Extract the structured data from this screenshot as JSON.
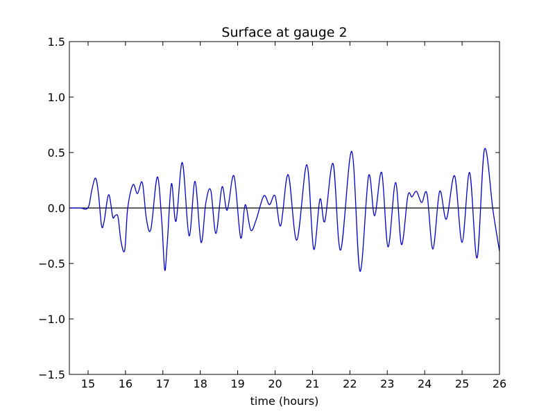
{
  "chart_data": {
    "type": "line",
    "title": "Surface at gauge 2",
    "xlabel": "time (hours)",
    "ylabel": "",
    "xlim": [
      14.5,
      26
    ],
    "ylim": [
      -1.5,
      1.5
    ],
    "grid": false,
    "x_ticks": [
      15,
      16,
      17,
      18,
      19,
      20,
      21,
      22,
      23,
      24,
      25,
      26
    ],
    "x_tick_labels": [
      "15",
      "16",
      "17",
      "18",
      "19",
      "20",
      "21",
      "22",
      "23",
      "24",
      "25",
      "26"
    ],
    "y_ticks": [
      -1.5,
      -1.0,
      -0.5,
      0.0,
      0.5,
      1.0,
      1.5
    ],
    "y_tick_labels": [
      "−1.5",
      "−1.0",
      "−0.5",
      "0.0",
      "0.5",
      "1.0",
      "1.5"
    ],
    "reference_line": {
      "y": 0.0,
      "color": "#000000"
    },
    "series": [
      {
        "color": "#0000cc",
        "x": [
          14.5,
          14.8,
          14.95,
          15.03,
          15.1,
          15.2,
          15.28,
          15.36,
          15.43,
          15.55,
          15.66,
          15.72,
          15.8,
          15.88,
          15.98,
          16.06,
          16.2,
          16.32,
          16.45,
          16.56,
          16.68,
          16.85,
          16.97,
          17.05,
          17.12,
          17.23,
          17.35,
          17.52,
          17.7,
          17.86,
          18.02,
          18.15,
          18.28,
          18.42,
          18.58,
          18.72,
          18.9,
          19.08,
          19.2,
          19.35,
          19.5,
          19.7,
          19.85,
          20.0,
          20.15,
          20.35,
          20.58,
          20.85,
          21.03,
          21.2,
          21.33,
          21.55,
          21.75,
          22.05,
          22.27,
          22.5,
          22.66,
          22.85,
          23.02,
          23.22,
          23.38,
          23.55,
          23.66,
          23.78,
          23.92,
          24.06,
          24.22,
          24.4,
          24.58,
          24.8,
          25.0,
          25.2,
          25.4,
          25.6,
          25.83,
          26.0
        ],
        "y": [
          0.0,
          0.0,
          -0.01,
          0.03,
          0.16,
          0.27,
          0.12,
          -0.16,
          -0.12,
          0.12,
          -0.08,
          -0.07,
          -0.08,
          -0.3,
          -0.38,
          0.0,
          0.21,
          0.13,
          0.23,
          -0.1,
          -0.19,
          0.28,
          -0.12,
          -0.56,
          -0.3,
          0.22,
          -0.12,
          0.41,
          -0.25,
          0.24,
          -0.31,
          0.05,
          0.16,
          -0.23,
          0.19,
          -0.02,
          0.29,
          -0.27,
          0.03,
          -0.2,
          -0.1,
          0.11,
          0.03,
          0.11,
          -0.16,
          0.3,
          -0.29,
          0.39,
          -0.37,
          0.08,
          -0.12,
          0.4,
          -0.38,
          0.51,
          -0.57,
          0.29,
          -0.07,
          0.32,
          -0.35,
          0.23,
          -0.33,
          0.11,
          0.1,
          0.15,
          0.05,
          0.13,
          -0.37,
          0.15,
          -0.1,
          0.29,
          -0.31,
          0.32,
          -0.45,
          0.53,
          -0.03,
          -0.39
        ]
      }
    ]
  }
}
